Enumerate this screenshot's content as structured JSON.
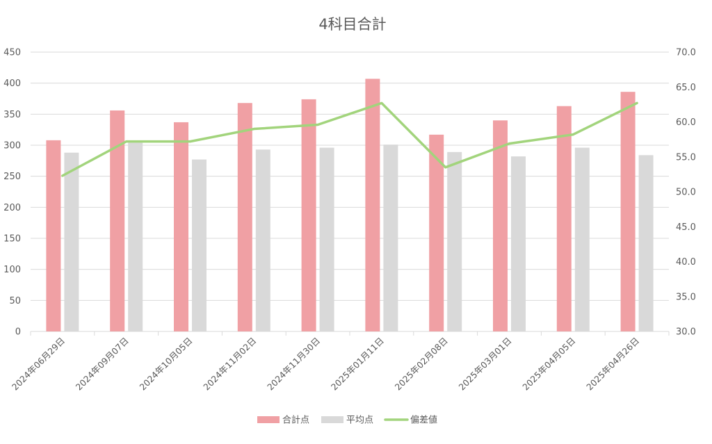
{
  "chart_data": {
    "type": "bar",
    "title": "4科目合計",
    "categories": [
      "2024年06月29日",
      "2024年09月07日",
      "2024年10月05日",
      "2024年11月02日",
      "2024年11月30日",
      "2025年01月11日",
      "2025年02月08日",
      "2025年03月01日",
      "2025年04月05日",
      "2025年04月26日"
    ],
    "series": [
      {
        "name": "合計点",
        "type": "bar",
        "axis": "left",
        "color": "#f0a0a4",
        "values": [
          308,
          356,
          337,
          368,
          374,
          407,
          317,
          340,
          363,
          386
        ]
      },
      {
        "name": "平均点",
        "type": "bar",
        "axis": "left",
        "color": "#d9d9d9",
        "values": [
          288,
          304,
          277,
          293,
          296,
          301,
          289,
          282,
          296,
          284
        ]
      },
      {
        "name": "偏差値",
        "type": "line",
        "axis": "right",
        "color": "#a2d47c",
        "values": [
          52.3,
          57.2,
          57.2,
          59.0,
          59.6,
          62.7,
          53.5,
          56.9,
          58.2,
          62.7
        ]
      }
    ],
    "y_left": {
      "min": 0,
      "max": 450,
      "step": 50,
      "ticks": [
        "0",
        "50",
        "100",
        "150",
        "200",
        "250",
        "300",
        "350",
        "400",
        "450"
      ]
    },
    "y_right": {
      "min": 30,
      "max": 70,
      "step": 5,
      "ticks": [
        "30.0",
        "35.0",
        "40.0",
        "45.0",
        "50.0",
        "55.0",
        "60.0",
        "65.0",
        "70.0"
      ]
    },
    "grid": true,
    "legend": "bottom",
    "axis_color": "#d9d9d9",
    "text_color": "#595959"
  }
}
